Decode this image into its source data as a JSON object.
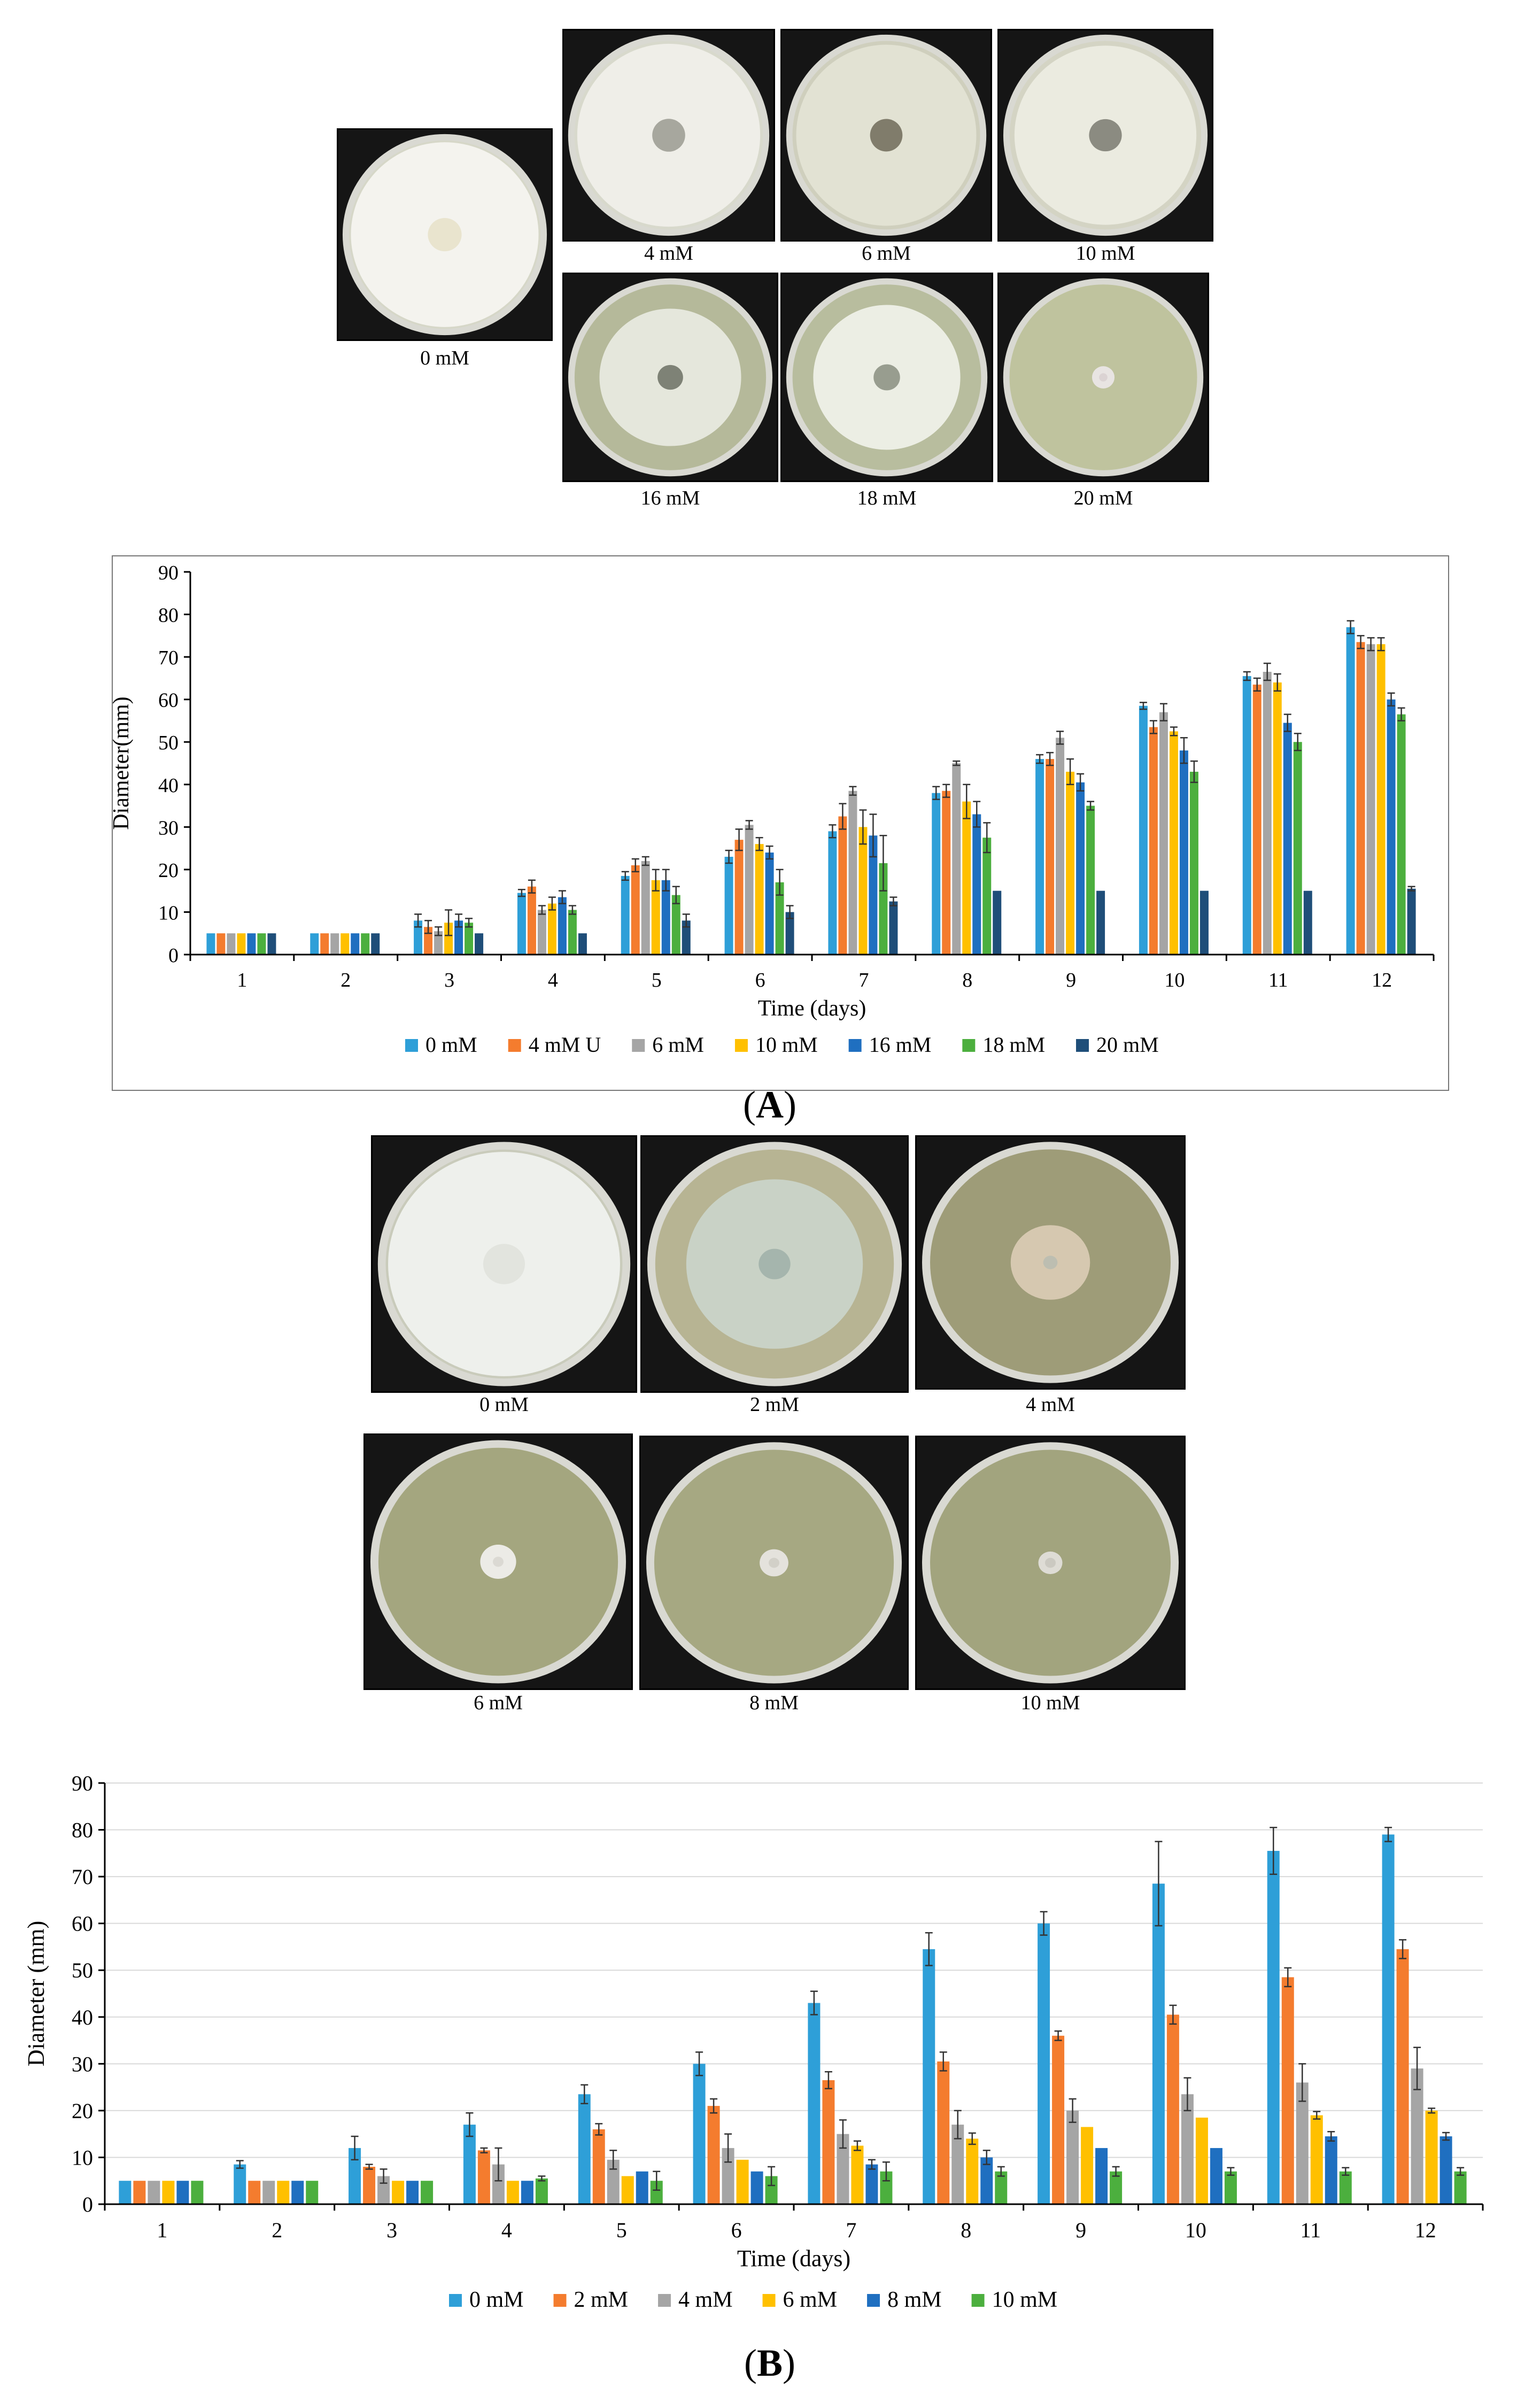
{
  "panelA": {
    "label_open": "(",
    "label_letter": "A",
    "label_close": ")",
    "photos": [
      {
        "caption": "0 mM",
        "agar": "#d6d7c8",
        "colony": "#f4f3ee",
        "center": "#e6e0c8",
        "colony_frac": 0.98
      },
      {
        "caption": "4 mM",
        "agar": "#d8d9cc",
        "colony": "#efeee8",
        "center": "#9a9a90",
        "colony_frac": 0.97
      },
      {
        "caption": "6 mM",
        "agar": "#cfcfbd",
        "colony": "#e2e2d3",
        "center": "#6e6a58",
        "colony_frac": 0.96
      },
      {
        "caption": "10 mM",
        "agar": "#d4d4c4",
        "colony": "#ebebe0",
        "center": "#7a7a70",
        "colony_frac": 0.95
      },
      {
        "caption": "16 mM",
        "agar": "#b5b99a",
        "colony": "#e5e7dc",
        "center": "#6c7064",
        "colony_frac": 0.74
      },
      {
        "caption": "18 mM",
        "agar": "#b8bd9e",
        "colony": "#eceee4",
        "center": "#8a8e80",
        "colony_frac": 0.78
      },
      {
        "caption": "20 mM",
        "agar": "#bfc39e",
        "colony": "#e8e4e2",
        "center": "#d8d0d0",
        "colony_frac": 0.12
      }
    ],
    "chart_data": {
      "type": "bar",
      "title": "",
      "xlabel": "Time (days)",
      "ylabel": "Diameter(mm)",
      "ylim": [
        0,
        90
      ],
      "yticks": [
        0,
        10,
        20,
        30,
        40,
        50,
        60,
        70,
        80,
        90
      ],
      "grid": false,
      "legend": "bottom",
      "categories": [
        "1",
        "2",
        "3",
        "4",
        "5",
        "6",
        "7",
        "8",
        "9",
        "10",
        "11",
        "12"
      ],
      "series": [
        {
          "name": "0 mM",
          "color": "#2e9fd8",
          "values": [
            5,
            5,
            8,
            14.5,
            18.5,
            23,
            29,
            38,
            46,
            58.5,
            65.5,
            77
          ],
          "errors": [
            0,
            0,
            1.5,
            0.8,
            1,
            1.5,
            1.5,
            1.5,
            1,
            0.8,
            1,
            1.5
          ]
        },
        {
          "name": "4 mM U",
          "color": "#f47c2e",
          "values": [
            5,
            5,
            6.5,
            16,
            21,
            27,
            32.5,
            38.5,
            46,
            53.5,
            63.5,
            73.5
          ],
          "errors": [
            0,
            0,
            1.5,
            1.5,
            1.5,
            2.5,
            3,
            1.5,
            1.5,
            1.5,
            1.5,
            1.5
          ]
        },
        {
          "name": "6 mM",
          "color": "#a5a5a5",
          "values": [
            5,
            5,
            5.5,
            10.5,
            22,
            30.5,
            38.5,
            45,
            51,
            57,
            66.5,
            73
          ],
          "errors": [
            0,
            0,
            1,
            1,
            1,
            1,
            1,
            0.5,
            1.5,
            2,
            2,
            1.5
          ]
        },
        {
          "name": "10 mM",
          "color": "#ffc000",
          "values": [
            5,
            5,
            7.5,
            12,
            17.5,
            26,
            30,
            36,
            43,
            52.5,
            64,
            73
          ],
          "errors": [
            0,
            0,
            3,
            1.5,
            2.5,
            1.5,
            4,
            4,
            3,
            1,
            2,
            1.5
          ]
        },
        {
          "name": "16 mM",
          "color": "#1f6fc0",
          "values": [
            5,
            5,
            8,
            13.5,
            17.5,
            24,
            28,
            33,
            40.5,
            48,
            54.5,
            60
          ],
          "errors": [
            0,
            0,
            1.5,
            1.5,
            2.5,
            1.5,
            5,
            3,
            2,
            3,
            2,
            1.5
          ]
        },
        {
          "name": "18 mM",
          "color": "#4caf3e",
          "values": [
            5,
            5,
            7.5,
            10.5,
            14,
            17,
            21.5,
            27.5,
            35,
            43,
            50,
            56.5
          ],
          "errors": [
            0,
            0,
            1,
            1,
            2,
            3,
            6.5,
            3.5,
            1,
            2.5,
            2,
            1.5
          ]
        },
        {
          "name": "20 mM",
          "color": "#1f4e79",
          "values": [
            5,
            5,
            5,
            5,
            8,
            10,
            12.5,
            15,
            15,
            15,
            15,
            15.5
          ],
          "errors": [
            0,
            0,
            0,
            0,
            1.5,
            1.5,
            1,
            0,
            0,
            0,
            0,
            0.5
          ]
        }
      ]
    }
  },
  "panelB": {
    "label_open": "(",
    "label_letter": "B",
    "label_close": ")",
    "photos": [
      {
        "caption": "0 mM",
        "agar": "#c9cbbb",
        "colony": "#eef0ec",
        "center": "#dfe2dc",
        "colony_frac": 0.98
      },
      {
        "caption": "2 mM",
        "agar": "#b7b493",
        "colony": "#c9d2c6",
        "center": "#9fb0a8",
        "colony_frac": 0.74
      },
      {
        "caption": "4 mM",
        "agar": "#9e9c78",
        "colony": "#d6c8b0",
        "center": "#b8bcb2",
        "colony_frac": 0.33
      },
      {
        "caption": "6 mM",
        "agar": "#a4a67f",
        "colony": "#ecebe6",
        "center": "#d8d6cf",
        "colony_frac": 0.15
      },
      {
        "caption": "8 mM",
        "agar": "#a6a882",
        "colony": "#e4e2dc",
        "center": "#cfcdc4",
        "colony_frac": 0.12
      },
      {
        "caption": "10 mM",
        "agar": "#a2a47e",
        "colony": "#dedcd5",
        "center": "#c8c6bd",
        "colony_frac": 0.1
      }
    ],
    "chart_data": {
      "type": "bar",
      "title": "",
      "xlabel": "Time (days)",
      "ylabel": "Diameter (mm)",
      "ylim": [
        0,
        90
      ],
      "yticks": [
        0,
        10,
        20,
        30,
        40,
        50,
        60,
        70,
        80,
        90
      ],
      "grid": true,
      "legend": "bottom",
      "categories": [
        "1",
        "2",
        "3",
        "4",
        "5",
        "6",
        "7",
        "8",
        "9",
        "10",
        "11",
        "12"
      ],
      "series": [
        {
          "name": "0 mM",
          "color": "#2e9fd8",
          "values": [
            5,
            8.5,
            12,
            17,
            23.5,
            30,
            43,
            54.5,
            60,
            68.5,
            75.5,
            79
          ],
          "errors": [
            0,
            0.8,
            2.5,
            2.5,
            2,
            2.5,
            2.5,
            3.5,
            2.5,
            9,
            5,
            1.5
          ]
        },
        {
          "name": "2 mM",
          "color": "#f47c2e",
          "values": [
            5,
            5,
            8,
            11.5,
            16,
            21,
            26.5,
            30.5,
            36,
            40.5,
            48.5,
            54.5
          ],
          "errors": [
            0,
            0,
            0.5,
            0.5,
            1.2,
            1.5,
            1.8,
            2,
            1,
            2,
            2,
            2
          ]
        },
        {
          "name": "4 mM",
          "color": "#a5a5a5",
          "values": [
            5,
            5,
            6,
            8.5,
            9.5,
            12,
            15,
            17,
            20,
            23.5,
            26,
            29
          ],
          "errors": [
            0,
            0,
            1.5,
            3.5,
            2,
            3,
            3,
            3,
            2.5,
            3.5,
            4,
            4.5
          ]
        },
        {
          "name": "6 mM",
          "color": "#ffc000",
          "values": [
            5,
            5,
            5,
            5,
            6,
            9.5,
            12.5,
            14,
            16.5,
            18.5,
            19,
            20
          ],
          "errors": [
            0,
            0,
            0,
            0,
            0,
            0,
            1,
            1.2,
            0,
            0,
            0.8,
            0.5
          ]
        },
        {
          "name": "8 mM",
          "color": "#1f6fc0",
          "values": [
            5,
            5,
            5,
            5,
            7,
            7,
            8.5,
            10,
            12,
            12,
            14.5,
            14.5
          ],
          "errors": [
            0,
            0,
            0,
            0,
            0,
            0,
            1,
            1.5,
            0,
            0,
            1,
            0.8
          ]
        },
        {
          "name": "10 mM",
          "color": "#4caf3e",
          "values": [
            5,
            5,
            5,
            5.5,
            5,
            6,
            7,
            7,
            7,
            7,
            7,
            7
          ],
          "errors": [
            0,
            0,
            0,
            0.5,
            2,
            2,
            2,
            1,
            1,
            0.8,
            0.8,
            0.8
          ]
        }
      ]
    }
  }
}
